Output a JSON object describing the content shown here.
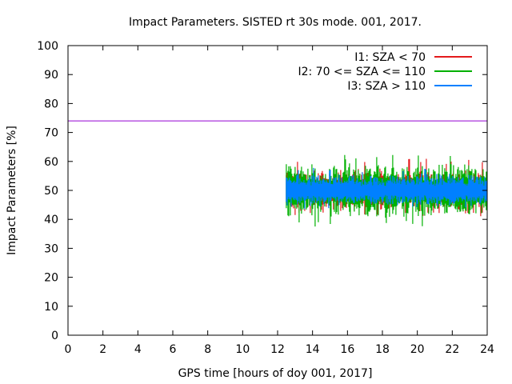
{
  "chart_data": {
    "type": "line",
    "title": "Impact Parameters. SISTED rt 30s mode. 001, 2017.",
    "xlabel": "GPS time [hours of doy 001, 2017]",
    "ylabel": "Impact Parameters [%]",
    "xlim": [
      0,
      24
    ],
    "ylim": [
      0,
      100
    ],
    "xticks": [
      0,
      2,
      4,
      6,
      8,
      10,
      12,
      14,
      16,
      18,
      20,
      22,
      24
    ],
    "yticks": [
      0,
      10,
      20,
      30,
      40,
      50,
      60,
      70,
      80,
      90,
      100
    ],
    "grid": false,
    "legend_position": "top-right",
    "reference_line": {
      "y": 74,
      "color": "#9400d3"
    },
    "series": [
      {
        "name": "I1: SZA < 70",
        "color": "#e41a1c",
        "x_start": 12.5,
        "x_end": 24,
        "mean": 50,
        "min": 41,
        "max": 61
      },
      {
        "name": "I2: 70 <= SZA <= 110",
        "color": "#00b000",
        "x_start": 12.5,
        "x_end": 24,
        "mean": 50,
        "min": 37.5,
        "max": 62.5
      },
      {
        "name": "I3: SZA > 110",
        "color": "#0080ff",
        "x_start": 12.5,
        "x_end": 24,
        "mean": 50,
        "min": 43,
        "max": 58
      }
    ]
  }
}
